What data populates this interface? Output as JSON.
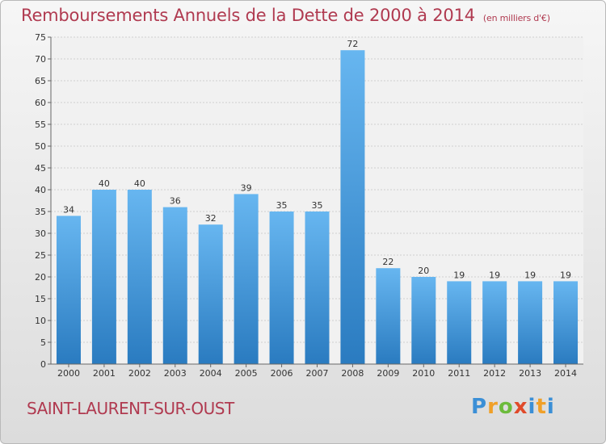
{
  "title": "Remboursements Annuels de la Dette de 2000 à 2014",
  "unit": "(en milliers d'€)",
  "city": "SAINT-LAURENT-SUR-OUST",
  "logo": "Proxiti",
  "colors": {
    "bar_light": "#63b3ee",
    "bar_dark": "#2a7bc0",
    "title": "#b03a50"
  },
  "chart_data": {
    "type": "bar",
    "categories": [
      "2000",
      "2001",
      "2002",
      "2003",
      "2004",
      "2005",
      "2006",
      "2007",
      "2008",
      "2009",
      "2010",
      "2011",
      "2012",
      "2013",
      "2014"
    ],
    "values": [
      34,
      40,
      40,
      36,
      32,
      39,
      35,
      35,
      72,
      22,
      20,
      19,
      19,
      19,
      19
    ],
    "ylim": [
      0,
      75
    ],
    "yticks": [
      0,
      5,
      10,
      15,
      20,
      25,
      30,
      35,
      40,
      45,
      50,
      55,
      60,
      65,
      70,
      75
    ],
    "grid": true,
    "data_labels": true
  }
}
